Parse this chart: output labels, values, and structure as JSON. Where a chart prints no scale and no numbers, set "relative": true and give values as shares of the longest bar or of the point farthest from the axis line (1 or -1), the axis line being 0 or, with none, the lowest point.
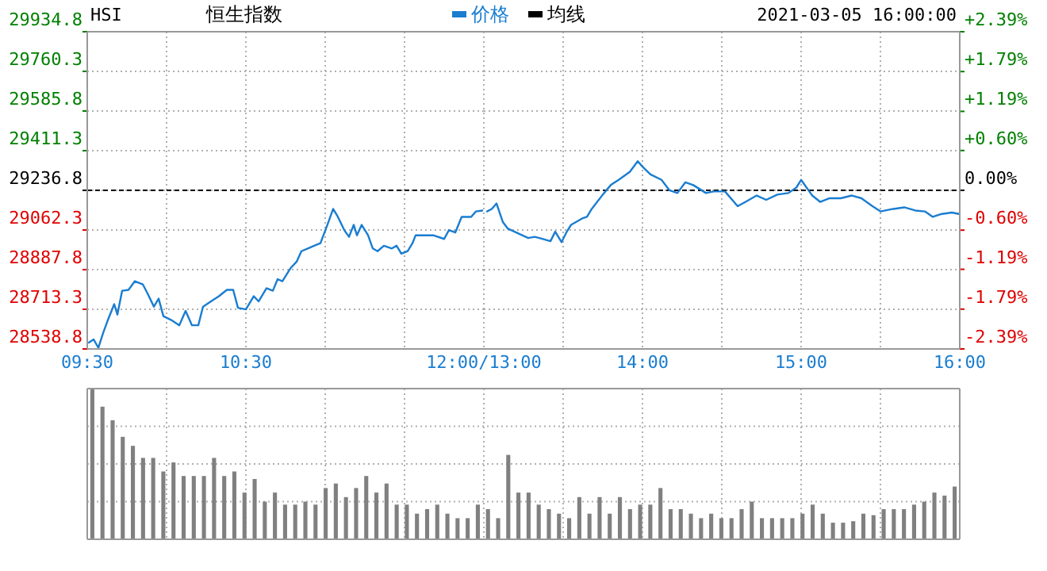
{
  "chart_data": [
    {
      "type": "line",
      "title": "恒生指数",
      "subtitle": "HSI",
      "xlim": [
        9.5,
        12
      ],
      "xticks": [
        {
          "value": 9.5,
          "label": "09:30"
        },
        {
          "value": 10,
          "label": null
        },
        {
          "value": 10.5,
          "label": "10:30"
        },
        {
          "value": 11,
          "label": null
        },
        {
          "value": 11.5,
          "label": null
        },
        {
          "value": 12,
          "label": "12:00/13:00"
        }
      ],
      "ylim": [
        28538.8,
        29934.8
      ],
      "yticks": [
        28538.8,
        28713.3,
        28887.8,
        29062.3,
        29236.8,
        29411.3,
        29585.8,
        29760.3,
        29934.8
      ],
      "grid": true,
      "legend": "top",
      "marker": "none",
      "line_style": "solid",
      "ref_lines": [
        {
          "axis": "y",
          "value": 29236.8,
          "color": "#000000",
          "line_style": "dashed"
        }
      ],
      "series": [
        {
          "name": "价格",
          "color": "#1a7dd0",
          "x": [
            9.51,
            9.54,
            9.57,
            9.6,
            9.63,
            9.67,
            9.69,
            9.72,
            9.76,
            9.8,
            9.85,
            9.88,
            9.92,
            9.95,
            9.98,
            10.03,
            10.08,
            10.12,
            10.16,
            10.2,
            10.23,
            10.28,
            10.33,
            10.38,
            10.42,
            10.45,
            10.5,
            10.55,
            10.58,
            10.63,
            10.67,
            10.7,
            10.73,
            10.78,
            10.82,
            10.85,
            10.89,
            10.93,
            10.97,
            11.02,
            11.05,
            11.08,
            11.12,
            11.15,
            11.18,
            11.2,
            11.23,
            11.27,
            11.3,
            11.33,
            11.37,
            11.42,
            11.45,
            11.48,
            11.52,
            11.55,
            11.57,
            11.62,
            11.68,
            11.75,
            11.78,
            11.82,
            11.86,
            11.92,
            11.95,
            11.99
          ],
          "values": [
            28567,
            28581,
            28544,
            28609,
            28666,
            28736,
            28690,
            28795,
            28799,
            28837,
            28823,
            28783,
            28725,
            28760,
            28683,
            28666,
            28643,
            28706,
            28643,
            28643,
            28725,
            28748,
            28771,
            28799,
            28799,
            28720,
            28713,
            28771,
            28748,
            28806,
            28795,
            28846,
            28837,
            28893,
            28923,
            28969,
            28981,
            28993,
            29004,
            29097,
            29155,
            29120,
            29062,
            29032,
            29085,
            29039,
            29085,
            29039,
            28981,
            28969,
            28993,
            28981,
            28993,
            28958,
            28969,
            29004,
            29039,
            29039,
            29039,
            29023,
            29062,
            29051,
            29120,
            29120,
            29144,
            29148
          ]
        },
        {
          "name": "均线",
          "color": "#000000"
        }
      ]
    },
    {
      "type": "line",
      "annotations": [
        "2021-03-05 16:00:00"
      ],
      "tick_labels": "x",
      "xlim": [
        13,
        16
      ],
      "xticks": [
        {
          "value": 13,
          "label": null
        },
        {
          "value": 13.5,
          "label": null
        },
        {
          "value": 14,
          "label": "14:00"
        },
        {
          "value": 14.5,
          "label": null
        },
        {
          "value": 15,
          "label": "15:00"
        },
        {
          "value": 15.5,
          "label": null
        },
        {
          "value": 16,
          "label": "16:00"
        }
      ],
      "ylim": [
        28538.8,
        29934.8
      ],
      "yticks": [
        28538.8,
        28713.3,
        28887.8,
        29062.3,
        29236.8,
        29411.3,
        29585.8,
        29760.3,
        29934.8
      ],
      "y2lim": [
        -2.39,
        2.39
      ],
      "y2ticks": [
        {
          "value": -2.39,
          "label": "-2.39%"
        },
        {
          "value": -1.79,
          "label": "-1.79%"
        },
        {
          "value": -1.19,
          "label": "-1.19%"
        },
        {
          "value": -0.6,
          "label": "-0.60%"
        },
        {
          "value": 0,
          "label": "0.00%"
        },
        {
          "value": 0.6,
          "label": "+0.60%"
        },
        {
          "value": 1.19,
          "label": "+1.19%"
        },
        {
          "value": 1.79,
          "label": "+1.79%"
        },
        {
          "value": 2.39,
          "label": "+2.39%"
        }
      ],
      "grid": true,
      "marker": "none",
      "line_style": "solid",
      "ref_lines": [
        {
          "axis": "y",
          "value": 29236.8,
          "color": "#000000",
          "line_style": "dashed"
        }
      ],
      "series": [
        {
          "color": "#1a7dd0",
          "x": [
            13.02,
            13.05,
            13.08,
            13.12,
            13.15,
            13.22,
            13.28,
            13.32,
            13.35,
            13.42,
            13.45,
            13.49,
            13.52,
            13.55,
            13.62,
            13.65,
            13.68,
            13.75,
            13.8,
            13.85,
            13.92,
            13.97,
            14.0,
            14.05,
            14.12,
            14.17,
            14.22,
            14.27,
            14.32,
            14.4,
            14.45,
            14.52,
            14.6,
            14.65,
            14.72,
            14.78,
            14.85,
            14.92,
            14.97,
            15.0,
            15.07,
            15.12,
            15.18,
            15.25,
            15.32,
            15.38,
            15.45,
            15.5,
            15.58,
            15.65,
            15.72,
            15.78,
            15.83,
            15.88,
            15.95,
            16.0
          ],
          "values": [
            29144,
            29155,
            29179,
            29097,
            29069,
            29046,
            29027,
            29032,
            29027,
            29013,
            29055,
            29009,
            29051,
            29085,
            29113,
            29120,
            29155,
            29218,
            29260,
            29283,
            29318,
            29365,
            29341,
            29307,
            29283,
            29237,
            29225,
            29272,
            29260,
            29225,
            29232,
            29232,
            29167,
            29186,
            29214,
            29195,
            29218,
            29225,
            29249,
            29283,
            29214,
            29186,
            29202,
            29202,
            29214,
            29202,
            29167,
            29144,
            29155,
            29162,
            29148,
            29144,
            29120,
            29132,
            29139,
            29132
          ]
        }
      ]
    },
    {
      "type": "bar",
      "relative": true,
      "grid": true,
      "color": "#808080",
      "categories": [
        null,
        null,
        null,
        null,
        null,
        null,
        null,
        null,
        null,
        null,
        null,
        null,
        null,
        null,
        null,
        null,
        null,
        null,
        null,
        null,
        null,
        null,
        null,
        null,
        null,
        null,
        null,
        null,
        null,
        null,
        null,
        null,
        null,
        null,
        null,
        null,
        null,
        null,
        null,
        null,
        null,
        null,
        null,
        null,
        null,
        null,
        null,
        null,
        null,
        null,
        null,
        null,
        null,
        null,
        null,
        null,
        null,
        null,
        null,
        null,
        null,
        null,
        null,
        null,
        null,
        null,
        null,
        null,
        null,
        null,
        null,
        null,
        null,
        null,
        null,
        null,
        null,
        null,
        null,
        null,
        null,
        null,
        null,
        null,
        null,
        null
      ],
      "values": [
        1,
        0.88,
        0.79,
        0.68,
        0.62,
        0.54,
        0.54,
        0.45,
        0.51,
        0.42,
        0.42,
        0.42,
        0.54,
        0.42,
        0.45,
        0.31,
        0.4,
        0.25,
        0.31,
        0.23,
        0.23,
        0.25,
        0.23,
        0.34,
        0.37,
        0.28,
        0.34,
        0.42,
        0.31,
        0.37,
        0.23,
        0.23,
        0.17,
        0.2,
        0.23,
        0.17,
        0.14,
        0.14,
        0.23,
        0.2,
        0.14,
        0.56,
        0.31,
        0.31,
        0.23,
        0.2,
        0.17,
        0.14,
        0.28,
        0.17,
        0.28,
        0.17,
        0.28,
        0.2,
        0.23,
        0.23,
        0.34,
        0.2,
        0.2,
        0.17,
        0.14,
        0.17,
        0.14,
        0.14,
        0.2,
        0.25,
        0.14,
        0.14,
        0.14,
        0.14,
        0.17,
        0.23,
        0.17,
        0.11,
        0.11,
        0.12,
        0.17,
        0.16,
        0.2,
        0.2,
        0.2,
        0.23,
        0.25,
        0.31,
        0.29,
        0.35
      ]
    }
  ]
}
